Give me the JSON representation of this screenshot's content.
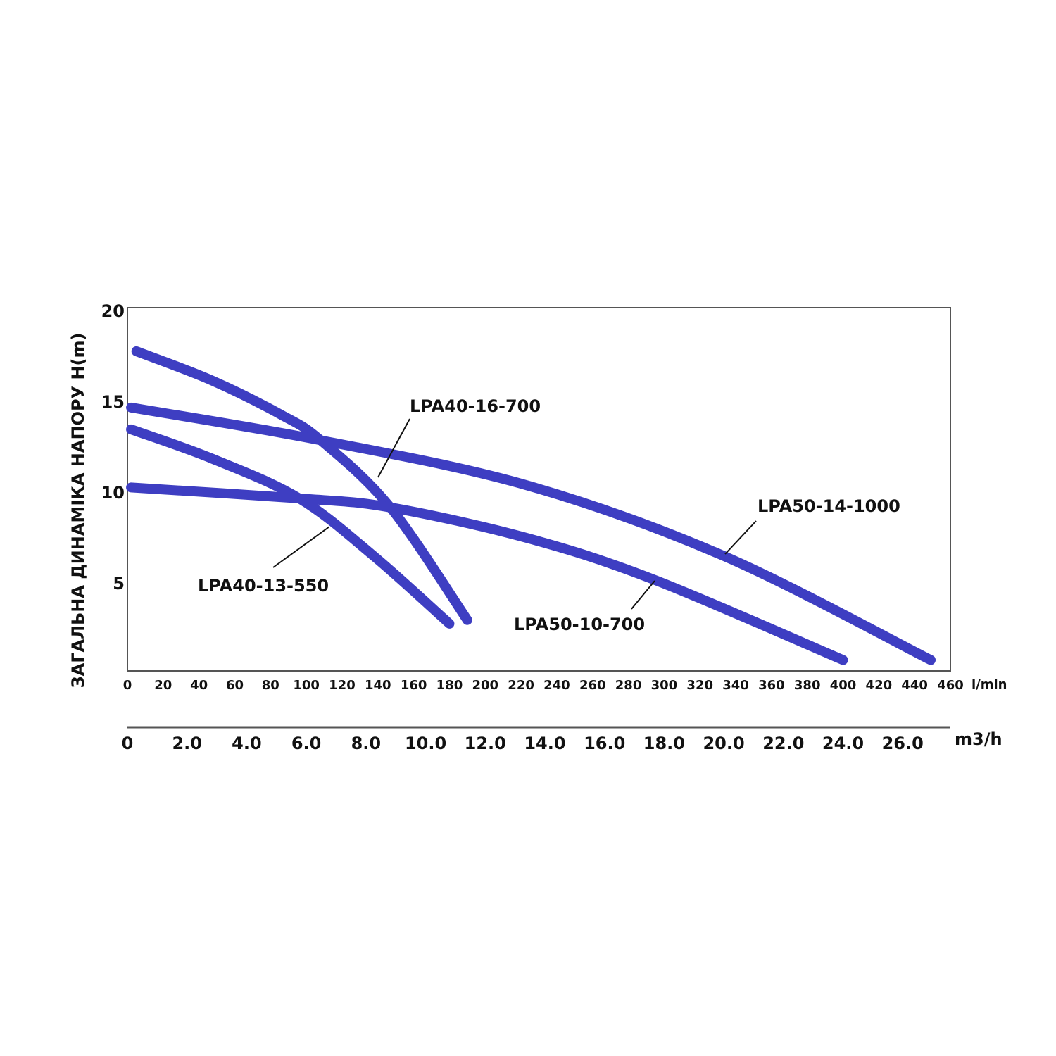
{
  "chart_data": {
    "type": "line",
    "y_label": "ЗАГАЛЬНА ДИНАМІКА НАПОРУ H(m)",
    "x_label": "l/min",
    "x2_label": "m3/h",
    "xlim": [
      0,
      460
    ],
    "xticks": [
      0,
      20,
      40,
      60,
      80,
      100,
      120,
      140,
      160,
      180,
      200,
      220,
      240,
      260,
      280,
      300,
      320,
      340,
      360,
      380,
      400,
      420,
      440,
      460
    ],
    "x2lim": [
      0,
      27.6
    ],
    "x2ticks": [
      0,
      {
        "value": 2,
        "label": "2.0"
      },
      {
        "value": 4,
        "label": "4.0"
      },
      {
        "value": 6,
        "label": "6.0"
      },
      {
        "value": 8,
        "label": "8.0"
      },
      {
        "value": 10,
        "label": "10.0"
      },
      {
        "value": 12,
        "label": "12.0"
      },
      {
        "value": 14,
        "label": "14.0"
      },
      {
        "value": 16,
        "label": "16.0"
      },
      {
        "value": 18,
        "label": "18.0"
      },
      {
        "value": 20,
        "label": "20.0"
      },
      {
        "value": 22,
        "label": "22.0"
      },
      {
        "value": 24,
        "label": "24.0"
      },
      {
        "value": 26,
        "label": "26.0"
      }
    ],
    "ylim": [
      0,
      20
    ],
    "yticks": [
      5,
      10,
      15,
      20
    ],
    "series": [
      {
        "name": "LPA40-16-700",
        "color": "#3e3ec2",
        "x": [
          5,
          47,
          86,
          108,
          147,
          190
        ],
        "values": [
          17.6,
          16.0,
          14.1,
          12.7,
          9.0,
          2.8
        ]
      },
      {
        "name": "LPA40-13-550",
        "color": "#3e3ec2",
        "x": [
          2,
          47,
          96,
          138,
          180
        ],
        "values": [
          13.3,
          11.7,
          9.5,
          6.3,
          2.6
        ]
      },
      {
        "name": "LPA50-14-1000",
        "color": "#3e3ec2",
        "x": [
          2,
          108,
          224,
          334,
          449
        ],
        "values": [
          14.5,
          12.7,
          10.2,
          6.3,
          0.6
        ]
      },
      {
        "name": "LPA50-10-700",
        "color": "#3e3ec2",
        "x": [
          2,
          96,
          147,
          224,
          295,
          400
        ],
        "values": [
          10.1,
          9.5,
          9.0,
          7.3,
          5.0,
          0.6
        ]
      }
    ]
  }
}
